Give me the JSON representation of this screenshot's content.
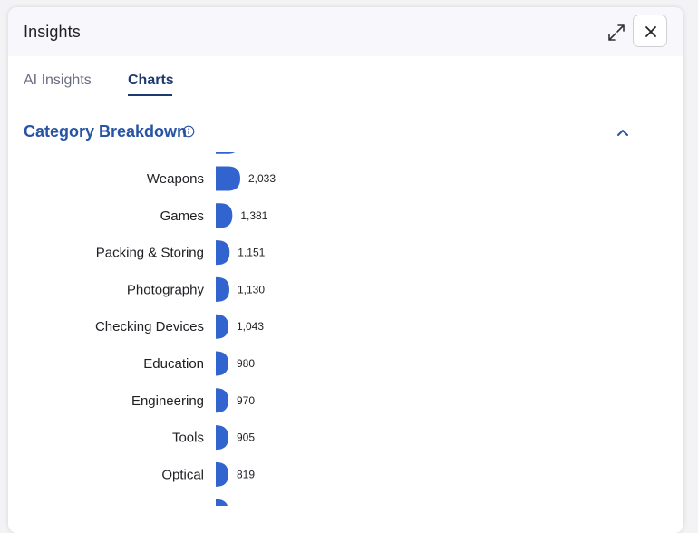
{
  "panel": {
    "title": "Insights"
  },
  "tabs": [
    {
      "label": "AI Insights",
      "active": false
    },
    {
      "label": "Charts",
      "active": true
    }
  ],
  "section": {
    "title": "Category Breakdown"
  },
  "icons": {
    "expand": "expand-icon",
    "close": "close-icon",
    "info": "info-icon",
    "collapse": "chevron-up-icon"
  },
  "colors": {
    "bar": "#3164cf",
    "section_title": "#2754a3",
    "active_tab": "#1d3a6f"
  },
  "chart_data": {
    "type": "bar",
    "orientation": "horizontal",
    "categories": [
      "Weapons",
      "Games",
      "Packing & Storing",
      "Photography",
      "Checking Devices",
      "Education",
      "Engineering",
      "Tools",
      "Optical"
    ],
    "values": [
      2033,
      1381,
      1151,
      1130,
      1043,
      980,
      970,
      905,
      819
    ],
    "value_labels": [
      "2,033",
      "1,381",
      "1,151",
      "1,130",
      "1,043",
      "980",
      "970",
      "905",
      "819"
    ],
    "title": "Category Breakdown",
    "xlabel": "",
    "ylabel": ""
  }
}
